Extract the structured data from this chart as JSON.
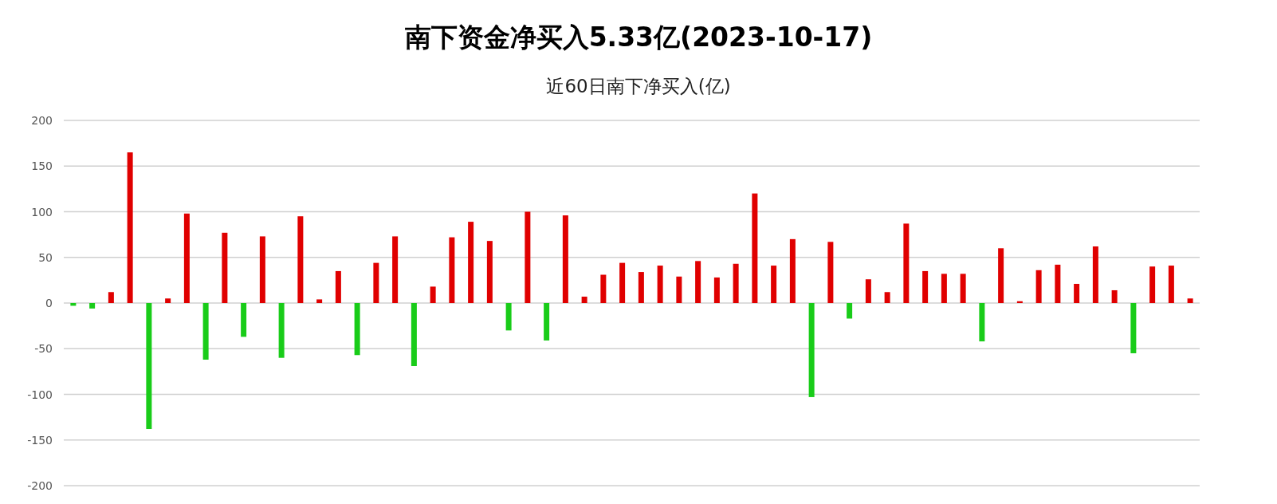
{
  "chart_data": {
    "type": "bar",
    "title": "南下资金净买入5.33亿(2023-10-17)",
    "subtitle": "近60日南下净买入(亿)",
    "categories": [
      null,
      null,
      null,
      null,
      null,
      null,
      null,
      null,
      null,
      null,
      null,
      null,
      null,
      null,
      null,
      null,
      null,
      null,
      null,
      null,
      null,
      null,
      null,
      null,
      null,
      null,
      null,
      null,
      null,
      null,
      null,
      null,
      null,
      null,
      null,
      null,
      null,
      null,
      null,
      null,
      null,
      null,
      null,
      null,
      null,
      null,
      null,
      null,
      null,
      null,
      null,
      null,
      null,
      null,
      null,
      null,
      null,
      null,
      null,
      null
    ],
    "values": [
      -3,
      -6,
      12,
      165,
      -138,
      5,
      98,
      -62,
      77,
      -37,
      73,
      -60,
      95,
      4,
      35,
      -57,
      44,
      73,
      -69,
      18,
      72,
      89,
      68,
      -30,
      100,
      -41,
      96,
      7,
      31,
      44,
      34,
      41,
      29,
      46,
      28,
      43,
      120,
      41,
      70,
      -103,
      67,
      -17,
      26,
      12,
      87,
      35,
      32,
      32,
      -42,
      60,
      2,
      36,
      42,
      21,
      62,
      14,
      -55,
      40,
      41,
      5
    ],
    "colors": [
      "#19cc19",
      "#19cc19",
      "#e00000",
      "#e00000",
      "#19cc19",
      "#e00000",
      "#e00000",
      "#19cc19",
      "#e00000",
      "#19cc19",
      "#e00000",
      "#19cc19",
      "#e00000",
      "#e00000",
      "#e00000",
      "#19cc19",
      "#e00000",
      "#e00000",
      "#19cc19",
      "#e00000",
      "#e00000",
      "#e00000",
      "#e00000",
      "#19cc19",
      "#e00000",
      "#19cc19",
      "#e00000",
      "#e00000",
      "#e00000",
      "#e00000",
      "#e00000",
      "#e00000",
      "#e00000",
      "#e00000",
      "#e00000",
      "#e00000",
      "#e00000",
      "#e00000",
      "#e00000",
      "#19cc19",
      "#e00000",
      "#19cc19",
      "#e00000",
      "#e00000",
      "#e00000",
      "#e00000",
      "#e00000",
      "#e00000",
      "#19cc19",
      "#e00000",
      "#e00000",
      "#e00000",
      "#e00000",
      "#e00000",
      "#e00000",
      "#e00000",
      "#19cc19",
      "#e00000",
      "#e00000",
      "#e00000"
    ],
    "ylim": [
      -200,
      200
    ],
    "yticks": [
      -200,
      -150,
      -100,
      -50,
      0,
      50,
      100,
      150,
      200
    ],
    "grid": "y",
    "tick_labels": "y"
  }
}
